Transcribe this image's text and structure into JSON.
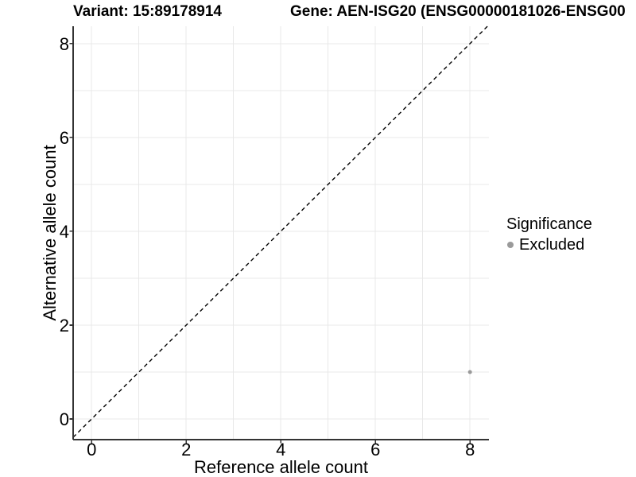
{
  "chart_data": {
    "type": "scatter",
    "titles": [
      "Variant: 15:89178914",
      "Gene: AEN-ISG20 (ENSG00000181026-ENSG00"
    ],
    "xlabel": "Reference allele count",
    "ylabel": "Alternative allele count",
    "xlim": [
      -0.39,
      8.4
    ],
    "ylim": [
      -0.44,
      8.37
    ],
    "xticks": [
      0,
      2,
      4,
      6,
      8
    ],
    "yticks": [
      0,
      2,
      4,
      6,
      8
    ],
    "grid_values": [
      0,
      1,
      2,
      3,
      4,
      5,
      6,
      7,
      8
    ],
    "grid": true,
    "identity_line": {
      "slope": 1,
      "intercept": 0,
      "style": "dashed",
      "color": "#000000"
    },
    "series": [
      {
        "name": "Excluded",
        "color": "#9a9a9a",
        "points": [
          {
            "x": 8,
            "y": 1
          }
        ]
      }
    ],
    "legend": {
      "title": "Significance",
      "position": "right-middle",
      "entries": [
        {
          "label": "Excluded",
          "color": "#9a9a9a",
          "marker": "circle-icon"
        }
      ]
    },
    "colors": {
      "background": "#ffffff",
      "grid": "#e8e8e8",
      "axis": "#333333",
      "text": "#000000"
    }
  }
}
